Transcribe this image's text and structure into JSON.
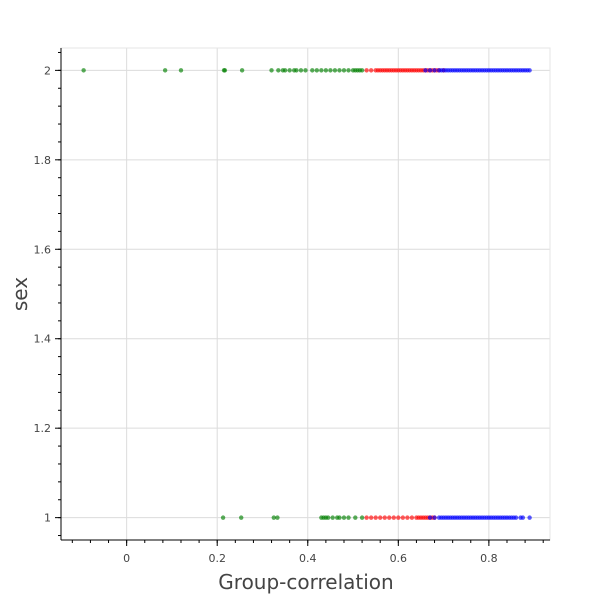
{
  "chart_data": {
    "type": "scatter",
    "title": "",
    "xlabel": "Group-correlation",
    "ylabel": "sex",
    "xlim": [
      -0.145,
      0.935
    ],
    "ylim": [
      0.95,
      2.05
    ],
    "xticks": [
      "0",
      "0.2",
      "0.4",
      "0.6",
      "0.8"
    ],
    "xtick_values": [
      0,
      0.2,
      0.4,
      0.6,
      0.8
    ],
    "yticks": [
      "1",
      "1.2",
      "1.4",
      "1.6",
      "1.8",
      "2"
    ],
    "ytick_values": [
      1,
      1.2,
      1.4,
      1.6,
      1.8,
      2
    ],
    "grid": true,
    "legend": "none",
    "series": [
      {
        "color": "#008000",
        "points": [
          [
            -0.095,
            2
          ],
          [
            0.085,
            2
          ],
          [
            0.12,
            2
          ],
          [
            0.215,
            2
          ],
          [
            0.217,
            2
          ],
          [
            0.255,
            2
          ],
          [
            0.32,
            2
          ],
          [
            0.335,
            2
          ],
          [
            0.345,
            2
          ],
          [
            0.35,
            2
          ],
          [
            0.36,
            2
          ],
          [
            0.37,
            2
          ],
          [
            0.375,
            2
          ],
          [
            0.385,
            2
          ],
          [
            0.395,
            2
          ],
          [
            0.41,
            2
          ],
          [
            0.42,
            2
          ],
          [
            0.43,
            2
          ],
          [
            0.44,
            2
          ],
          [
            0.45,
            2
          ],
          [
            0.46,
            2
          ],
          [
            0.47,
            2
          ],
          [
            0.48,
            2
          ],
          [
            0.49,
            2
          ],
          [
            0.5,
            2
          ],
          [
            0.505,
            2
          ],
          [
            0.51,
            2
          ],
          [
            0.515,
            2
          ],
          [
            0.52,
            2
          ],
          [
            0.213,
            1
          ],
          [
            0.253,
            1
          ],
          [
            0.325,
            1
          ],
          [
            0.333,
            1
          ],
          [
            0.43,
            1
          ],
          [
            0.435,
            1
          ],
          [
            0.44,
            1
          ],
          [
            0.445,
            1
          ],
          [
            0.455,
            1
          ],
          [
            0.465,
            1
          ],
          [
            0.47,
            1
          ],
          [
            0.48,
            1
          ],
          [
            0.49,
            1
          ],
          [
            0.505,
            1
          ],
          [
            0.52,
            1
          ]
        ]
      },
      {
        "color": "#ff0000",
        "points": [
          [
            0.53,
            2
          ],
          [
            0.54,
            2
          ],
          [
            0.55,
            2
          ],
          [
            0.555,
            2
          ],
          [
            0.56,
            2
          ],
          [
            0.565,
            2
          ],
          [
            0.57,
            2
          ],
          [
            0.575,
            2
          ],
          [
            0.58,
            2
          ],
          [
            0.585,
            2
          ],
          [
            0.59,
            2
          ],
          [
            0.595,
            2
          ],
          [
            0.6,
            2
          ],
          [
            0.605,
            2
          ],
          [
            0.61,
            2
          ],
          [
            0.615,
            2
          ],
          [
            0.62,
            2
          ],
          [
            0.625,
            2
          ],
          [
            0.63,
            2
          ],
          [
            0.635,
            2
          ],
          [
            0.64,
            2
          ],
          [
            0.645,
            2
          ],
          [
            0.65,
            2
          ],
          [
            0.655,
            2
          ],
          [
            0.66,
            2
          ],
          [
            0.665,
            2
          ],
          [
            0.67,
            2
          ],
          [
            0.675,
            2
          ],
          [
            0.68,
            2
          ],
          [
            0.685,
            2
          ],
          [
            0.69,
            2
          ],
          [
            0.7,
            2
          ],
          [
            0.53,
            1
          ],
          [
            0.54,
            1
          ],
          [
            0.55,
            1
          ],
          [
            0.56,
            1
          ],
          [
            0.57,
            1
          ],
          [
            0.58,
            1
          ],
          [
            0.59,
            1
          ],
          [
            0.6,
            1
          ],
          [
            0.61,
            1
          ],
          [
            0.62,
            1
          ],
          [
            0.63,
            1
          ],
          [
            0.64,
            1
          ],
          [
            0.645,
            1
          ],
          [
            0.65,
            1
          ],
          [
            0.655,
            1
          ],
          [
            0.66,
            1
          ],
          [
            0.665,
            1
          ],
          [
            0.67,
            1
          ],
          [
            0.675,
            1
          ],
          [
            0.68,
            1
          ]
        ]
      },
      {
        "color": "#0000ff",
        "points": [
          [
            0.66,
            2
          ],
          [
            0.67,
            2
          ],
          [
            0.68,
            2
          ],
          [
            0.69,
            2
          ],
          [
            0.695,
            2
          ],
          [
            0.7,
            2
          ],
          [
            0.705,
            2
          ],
          [
            0.71,
            2
          ],
          [
            0.715,
            2
          ],
          [
            0.72,
            2
          ],
          [
            0.725,
            2
          ],
          [
            0.73,
            2
          ],
          [
            0.735,
            2
          ],
          [
            0.74,
            2
          ],
          [
            0.745,
            2
          ],
          [
            0.75,
            2
          ],
          [
            0.755,
            2
          ],
          [
            0.76,
            2
          ],
          [
            0.765,
            2
          ],
          [
            0.77,
            2
          ],
          [
            0.775,
            2
          ],
          [
            0.78,
            2
          ],
          [
            0.785,
            2
          ],
          [
            0.79,
            2
          ],
          [
            0.795,
            2
          ],
          [
            0.8,
            2
          ],
          [
            0.805,
            2
          ],
          [
            0.81,
            2
          ],
          [
            0.815,
            2
          ],
          [
            0.82,
            2
          ],
          [
            0.825,
            2
          ],
          [
            0.83,
            2
          ],
          [
            0.835,
            2
          ],
          [
            0.84,
            2
          ],
          [
            0.845,
            2
          ],
          [
            0.85,
            2
          ],
          [
            0.855,
            2
          ],
          [
            0.86,
            2
          ],
          [
            0.865,
            2
          ],
          [
            0.87,
            2
          ],
          [
            0.875,
            2
          ],
          [
            0.88,
            2
          ],
          [
            0.885,
            2
          ],
          [
            0.89,
            2
          ],
          [
            0.67,
            1
          ],
          [
            0.68,
            1
          ],
          [
            0.69,
            1
          ],
          [
            0.695,
            1
          ],
          [
            0.7,
            1
          ],
          [
            0.705,
            1
          ],
          [
            0.71,
            1
          ],
          [
            0.715,
            1
          ],
          [
            0.72,
            1
          ],
          [
            0.725,
            1
          ],
          [
            0.73,
            1
          ],
          [
            0.735,
            1
          ],
          [
            0.74,
            1
          ],
          [
            0.745,
            1
          ],
          [
            0.75,
            1
          ],
          [
            0.755,
            1
          ],
          [
            0.76,
            1
          ],
          [
            0.765,
            1
          ],
          [
            0.77,
            1
          ],
          [
            0.775,
            1
          ],
          [
            0.78,
            1
          ],
          [
            0.785,
            1
          ],
          [
            0.79,
            1
          ],
          [
            0.795,
            1
          ],
          [
            0.8,
            1
          ],
          [
            0.805,
            1
          ],
          [
            0.81,
            1
          ],
          [
            0.815,
            1
          ],
          [
            0.82,
            1
          ],
          [
            0.825,
            1
          ],
          [
            0.83,
            1
          ],
          [
            0.835,
            1
          ],
          [
            0.84,
            1
          ],
          [
            0.845,
            1
          ],
          [
            0.85,
            1
          ],
          [
            0.855,
            1
          ],
          [
            0.86,
            1
          ],
          [
            0.87,
            1
          ],
          [
            0.875,
            1
          ],
          [
            0.89,
            1
          ]
        ]
      }
    ]
  }
}
